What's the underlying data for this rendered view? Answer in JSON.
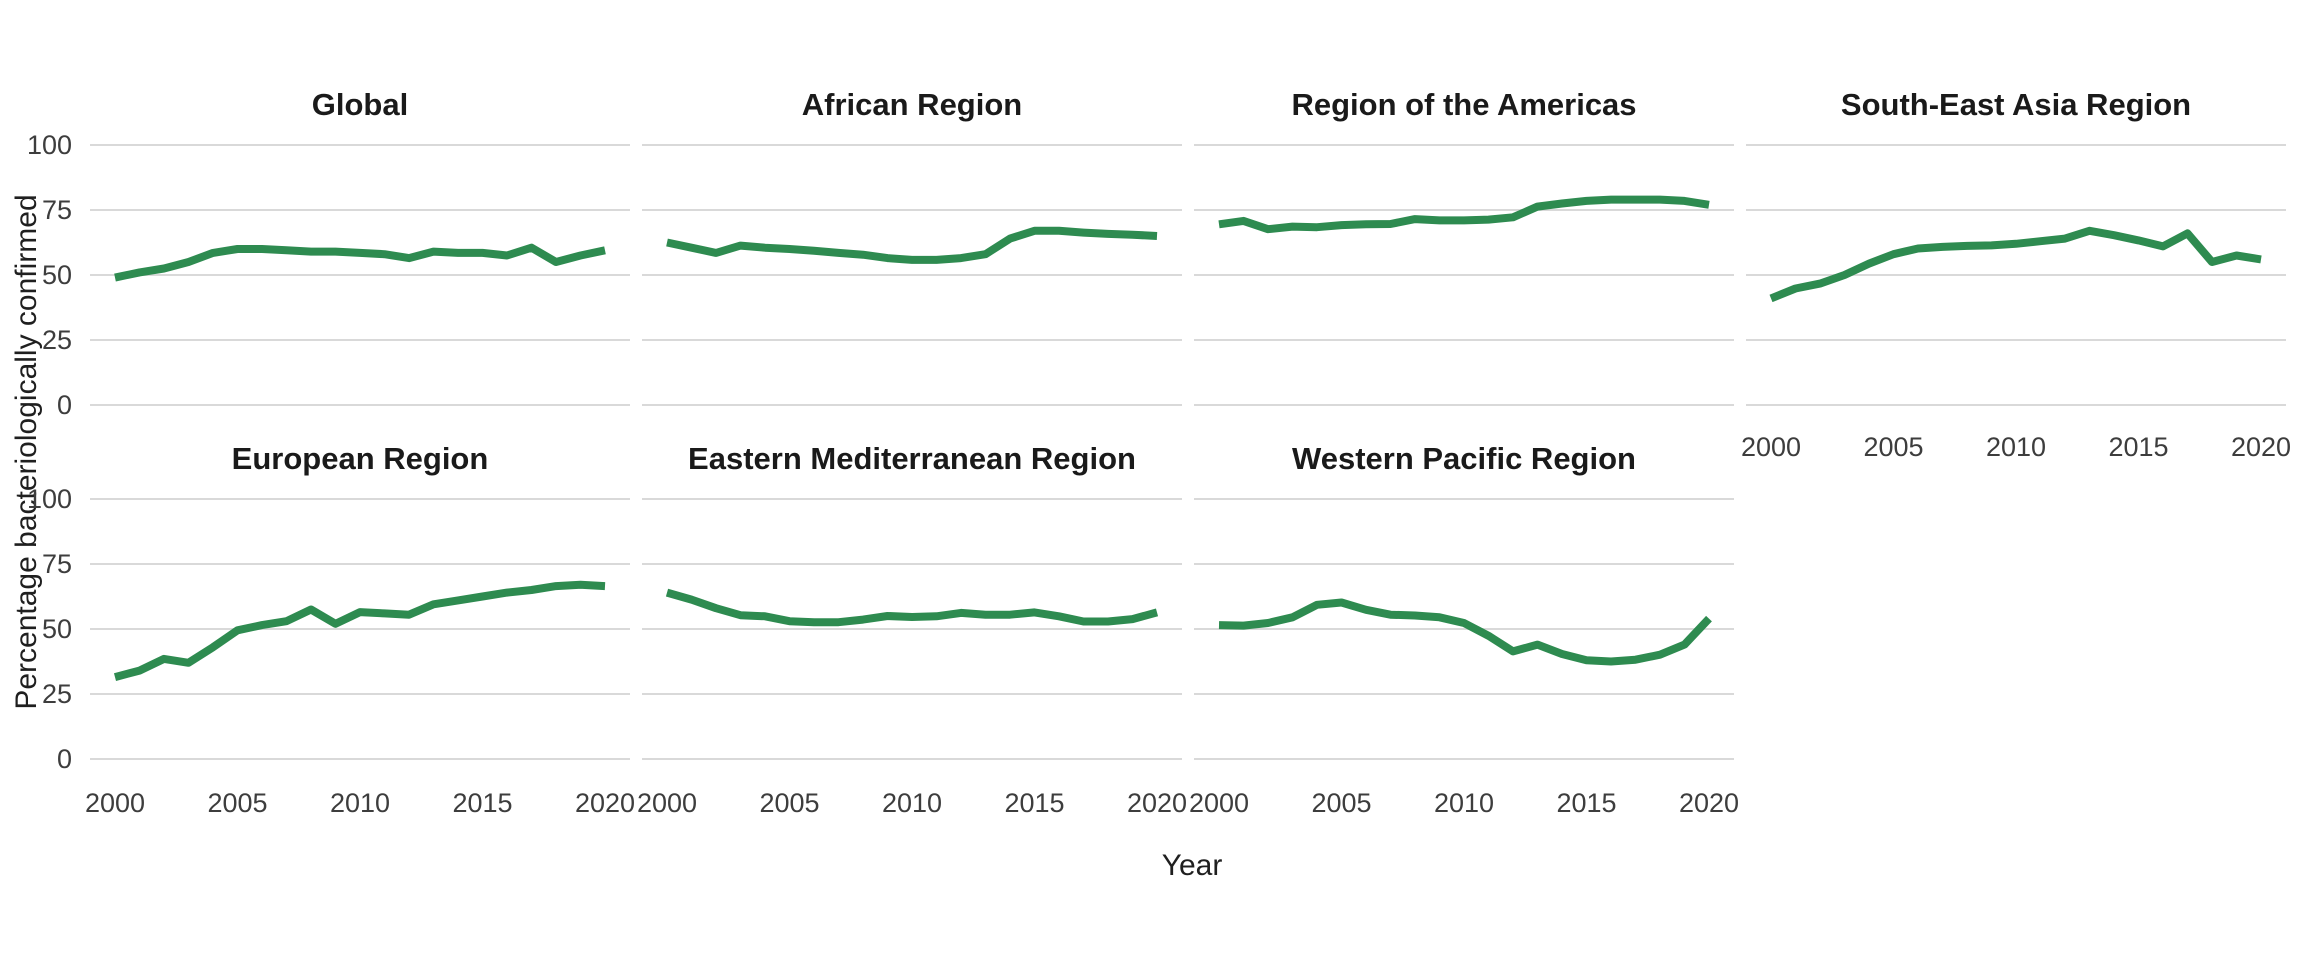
{
  "chart_data": {
    "type": "line",
    "title": "",
    "xlabel": "Year",
    "ylabel": "Percentage bacteriologically confirmed",
    "x": [
      2000,
      2001,
      2002,
      2003,
      2004,
      2005,
      2006,
      2007,
      2008,
      2009,
      2010,
      2011,
      2012,
      2013,
      2014,
      2015,
      2016,
      2017,
      2018,
      2019,
      2020
    ],
    "x_ticks": [
      2000,
      2005,
      2010,
      2015,
      2020
    ],
    "y_ticks": [
      0,
      25,
      50,
      75,
      100
    ],
    "ylim": [
      0,
      100
    ],
    "grid": "horizontal-only",
    "legend": "none",
    "line_color": "#2e8b50",
    "gridline_color": "#d9d9d9",
    "facets": [
      {
        "name": "Global",
        "values": [
          49,
          51,
          52.5,
          55,
          58.5,
          60,
          60,
          59.5,
          59,
          59,
          58.5,
          58,
          56.5,
          59,
          58.5,
          58.5,
          57.5,
          60.5,
          55,
          57.5,
          59.5
        ]
      },
      {
        "name": "African Region",
        "values": [
          62.5,
          60.5,
          58.5,
          61.3,
          60.5,
          60,
          59.3,
          58.5,
          57.8,
          56.5,
          55.8,
          55.8,
          56.5,
          58,
          64,
          67,
          67,
          66.3,
          65.8,
          65.5,
          65
        ]
      },
      {
        "name": "Region of the Americas",
        "values": [
          69.5,
          70.8,
          67.6,
          68.6,
          68.4,
          69.2,
          69.5,
          69.6,
          71.5,
          71,
          71,
          71.3,
          72.2,
          76.3,
          77.5,
          78.5,
          79,
          79,
          79,
          78.5,
          77
        ]
      },
      {
        "name": "South-East Asia Region",
        "values": [
          41,
          44.8,
          46.7,
          50,
          54.4,
          58,
          60.2,
          60.8,
          61.2,
          61.4,
          62,
          63,
          64,
          67,
          65.3,
          63.3,
          61,
          66,
          55,
          57.5,
          56
        ]
      },
      {
        "name": "European Region",
        "values": [
          31.5,
          34,
          38.5,
          37,
          43,
          49.5,
          51.5,
          53,
          57.5,
          52,
          56.5,
          56,
          55.5,
          59.5,
          61,
          62.5,
          64,
          65,
          66.5,
          67,
          66.5
        ]
      },
      {
        "name": "Eastern Mediterranean Region",
        "values": [
          64,
          61.3,
          58,
          55.3,
          54.9,
          53,
          52.6,
          52.6,
          53.6,
          55,
          54.6,
          54.9,
          56.2,
          55.5,
          55.5,
          56.4,
          54.9,
          52.9,
          52.9,
          53.8,
          56.4
        ]
      },
      {
        "name": "Western Pacific Region",
        "values": [
          51.5,
          51.3,
          52.3,
          54.5,
          59.3,
          60.2,
          57.4,
          55.5,
          55.2,
          54.5,
          52.3,
          47.4,
          41.4,
          44,
          40.4,
          38,
          37.5,
          38.2,
          40.1,
          44,
          54
        ]
      }
    ]
  }
}
